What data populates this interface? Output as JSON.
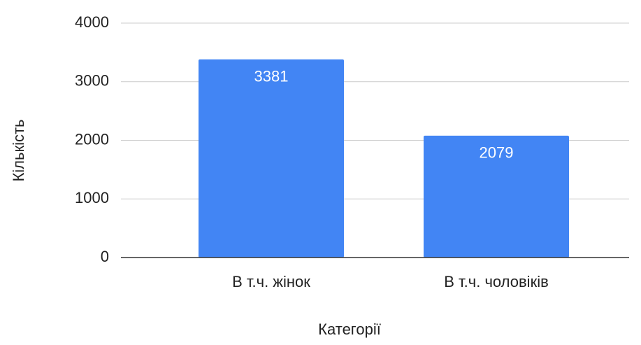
{
  "chart_data": {
    "type": "bar",
    "x_label": "Категорії",
    "y_label": "Кількість",
    "categories": [
      "В т.ч. жінок",
      "В т.ч. чоловіків"
    ],
    "values": [
      3381,
      2079
    ],
    "color": "#4285f4",
    "ylim": [
      0,
      4000
    ],
    "yticks": [
      0,
      1000,
      2000,
      3000,
      4000
    ],
    "grid": true
  }
}
